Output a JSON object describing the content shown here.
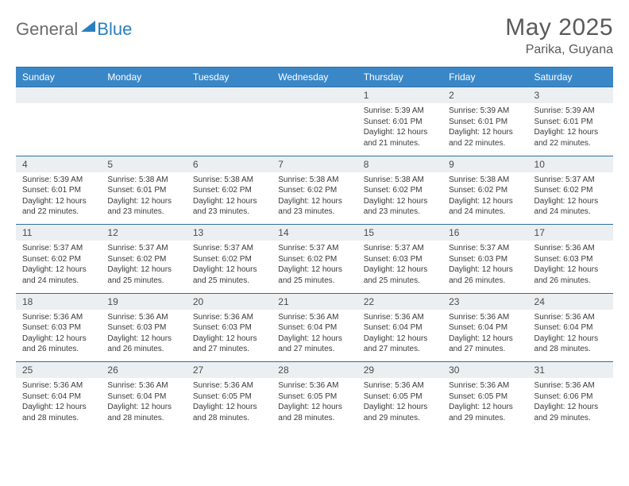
{
  "logo": {
    "text1": "General",
    "text2": "Blue"
  },
  "title": "May 2025",
  "location": "Parika, Guyana",
  "colors": {
    "header_bg": "#3a87c8",
    "header_text": "#ffffff",
    "daynum_bg": "#eceff1",
    "border": "#2f6fa3",
    "logo_gray": "#6b6b6b",
    "logo_blue": "#2a7fbf",
    "body_text": "#3a3a3a",
    "title_text": "#5a5a5a"
  },
  "weekdays": [
    "Sunday",
    "Monday",
    "Tuesday",
    "Wednesday",
    "Thursday",
    "Friday",
    "Saturday"
  ],
  "weeks": [
    [
      null,
      null,
      null,
      null,
      {
        "n": "1",
        "sunrise": "5:39 AM",
        "sunset": "6:01 PM",
        "daylight": "12 hours and 21 minutes."
      },
      {
        "n": "2",
        "sunrise": "5:39 AM",
        "sunset": "6:01 PM",
        "daylight": "12 hours and 22 minutes."
      },
      {
        "n": "3",
        "sunrise": "5:39 AM",
        "sunset": "6:01 PM",
        "daylight": "12 hours and 22 minutes."
      }
    ],
    [
      {
        "n": "4",
        "sunrise": "5:39 AM",
        "sunset": "6:01 PM",
        "daylight": "12 hours and 22 minutes."
      },
      {
        "n": "5",
        "sunrise": "5:38 AM",
        "sunset": "6:01 PM",
        "daylight": "12 hours and 23 minutes."
      },
      {
        "n": "6",
        "sunrise": "5:38 AM",
        "sunset": "6:02 PM",
        "daylight": "12 hours and 23 minutes."
      },
      {
        "n": "7",
        "sunrise": "5:38 AM",
        "sunset": "6:02 PM",
        "daylight": "12 hours and 23 minutes."
      },
      {
        "n": "8",
        "sunrise": "5:38 AM",
        "sunset": "6:02 PM",
        "daylight": "12 hours and 23 minutes."
      },
      {
        "n": "9",
        "sunrise": "5:38 AM",
        "sunset": "6:02 PM",
        "daylight": "12 hours and 24 minutes."
      },
      {
        "n": "10",
        "sunrise": "5:37 AM",
        "sunset": "6:02 PM",
        "daylight": "12 hours and 24 minutes."
      }
    ],
    [
      {
        "n": "11",
        "sunrise": "5:37 AM",
        "sunset": "6:02 PM",
        "daylight": "12 hours and 24 minutes."
      },
      {
        "n": "12",
        "sunrise": "5:37 AM",
        "sunset": "6:02 PM",
        "daylight": "12 hours and 25 minutes."
      },
      {
        "n": "13",
        "sunrise": "5:37 AM",
        "sunset": "6:02 PM",
        "daylight": "12 hours and 25 minutes."
      },
      {
        "n": "14",
        "sunrise": "5:37 AM",
        "sunset": "6:02 PM",
        "daylight": "12 hours and 25 minutes."
      },
      {
        "n": "15",
        "sunrise": "5:37 AM",
        "sunset": "6:03 PM",
        "daylight": "12 hours and 25 minutes."
      },
      {
        "n": "16",
        "sunrise": "5:37 AM",
        "sunset": "6:03 PM",
        "daylight": "12 hours and 26 minutes."
      },
      {
        "n": "17",
        "sunrise": "5:36 AM",
        "sunset": "6:03 PM",
        "daylight": "12 hours and 26 minutes."
      }
    ],
    [
      {
        "n": "18",
        "sunrise": "5:36 AM",
        "sunset": "6:03 PM",
        "daylight": "12 hours and 26 minutes."
      },
      {
        "n": "19",
        "sunrise": "5:36 AM",
        "sunset": "6:03 PM",
        "daylight": "12 hours and 26 minutes."
      },
      {
        "n": "20",
        "sunrise": "5:36 AM",
        "sunset": "6:03 PM",
        "daylight": "12 hours and 27 minutes."
      },
      {
        "n": "21",
        "sunrise": "5:36 AM",
        "sunset": "6:04 PM",
        "daylight": "12 hours and 27 minutes."
      },
      {
        "n": "22",
        "sunrise": "5:36 AM",
        "sunset": "6:04 PM",
        "daylight": "12 hours and 27 minutes."
      },
      {
        "n": "23",
        "sunrise": "5:36 AM",
        "sunset": "6:04 PM",
        "daylight": "12 hours and 27 minutes."
      },
      {
        "n": "24",
        "sunrise": "5:36 AM",
        "sunset": "6:04 PM",
        "daylight": "12 hours and 28 minutes."
      }
    ],
    [
      {
        "n": "25",
        "sunrise": "5:36 AM",
        "sunset": "6:04 PM",
        "daylight": "12 hours and 28 minutes."
      },
      {
        "n": "26",
        "sunrise": "5:36 AM",
        "sunset": "6:04 PM",
        "daylight": "12 hours and 28 minutes."
      },
      {
        "n": "27",
        "sunrise": "5:36 AM",
        "sunset": "6:05 PM",
        "daylight": "12 hours and 28 minutes."
      },
      {
        "n": "28",
        "sunrise": "5:36 AM",
        "sunset": "6:05 PM",
        "daylight": "12 hours and 28 minutes."
      },
      {
        "n": "29",
        "sunrise": "5:36 AM",
        "sunset": "6:05 PM",
        "daylight": "12 hours and 29 minutes."
      },
      {
        "n": "30",
        "sunrise": "5:36 AM",
        "sunset": "6:05 PM",
        "daylight": "12 hours and 29 minutes."
      },
      {
        "n": "31",
        "sunrise": "5:36 AM",
        "sunset": "6:06 PM",
        "daylight": "12 hours and 29 minutes."
      }
    ]
  ],
  "labels": {
    "sunrise": "Sunrise: ",
    "sunset": "Sunset: ",
    "daylight": "Daylight: "
  }
}
